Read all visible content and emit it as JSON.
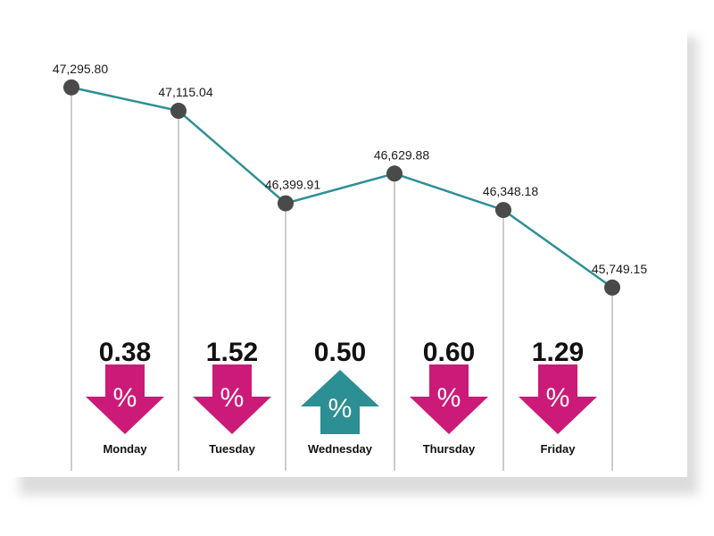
{
  "chart_data": {
    "type": "line",
    "title": "",
    "xlabel": "",
    "ylabel": "",
    "categories": [
      "Monday",
      "Tuesday",
      "Wednesday",
      "Thursday",
      "Friday"
    ],
    "points": [
      {
        "label": "Monday",
        "value": 47295.8
      },
      {
        "label": "",
        "value": 47115.04
      },
      {
        "label": "Tuesday",
        "value": 46399.91
      },
      {
        "label": "Wednesday",
        "value": 46629.88
      },
      {
        "label": "Thursday",
        "value": 46348.18
      },
      {
        "label": "Friday",
        "value": 45749.15
      }
    ],
    "value_labels": [
      "47,295.80",
      "47,115.04",
      "46,399.91",
      "46,629.88",
      "46,348.18",
      "45,749.15"
    ],
    "changes": [
      {
        "day": "Monday",
        "value": "0.38",
        "direction": "down"
      },
      {
        "day": "Tuesday",
        "value": "1.52",
        "direction": "down"
      },
      {
        "day": "Wednesday",
        "value": "0.50",
        "direction": "up"
      },
      {
        "day": "Thursday",
        "value": "0.60",
        "direction": "down"
      },
      {
        "day": "Friday",
        "value": "1.29",
        "direction": "down"
      }
    ],
    "percent_symbol": "%",
    "ylim": [
      45700,
      47350
    ],
    "grid": false,
    "colors": {
      "line": "#2e8f96",
      "marker": "#4a4a4a",
      "down_arrow": "#cc1a78",
      "up_arrow": "#2c8f93",
      "drop_line": "#9a9a9a"
    }
  }
}
